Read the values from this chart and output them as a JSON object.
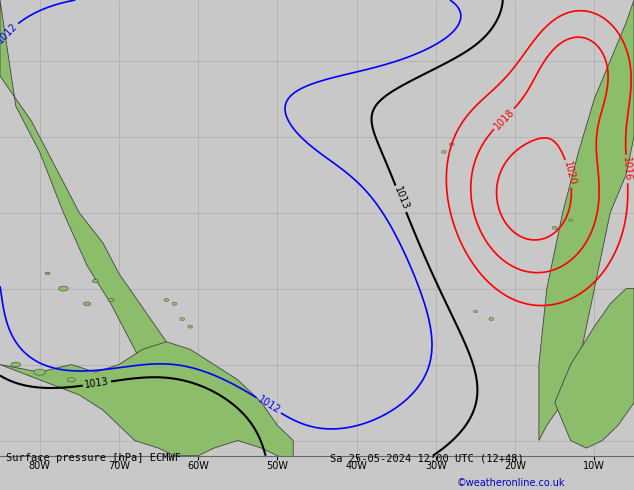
{
  "title_bottom": "Surface pressure [hPa] ECMWF",
  "date_str": "Sa 25-05-2024 12:00 UTC (12+48)",
  "credit": "©weatheronline.co.uk",
  "bg_color": "#c8c8c8",
  "land_color": "#8cbd6a",
  "credit_color": "#0000cc",
  "lon_min": -85,
  "lon_max": -5,
  "lat_min": -2,
  "lat_max": 58,
  "xticks": [
    -80,
    -70,
    -60,
    -50,
    -40,
    -30,
    -20,
    -10
  ],
  "xticklabels": [
    "80W",
    "70W",
    "60W",
    "50W",
    "40W",
    "30W",
    "20W",
    "10W"
  ],
  "black_levels": [
    1013
  ],
  "blue_levels": [
    1012
  ],
  "red_levels": [
    1016,
    1018,
    1020
  ],
  "base_pressure": 1013.5,
  "grid_lons": [
    -80,
    -70,
    -60,
    -50,
    -40,
    -30,
    -20,
    -10
  ],
  "grid_lats": [
    0,
    10,
    20,
    30,
    40,
    50
  ]
}
